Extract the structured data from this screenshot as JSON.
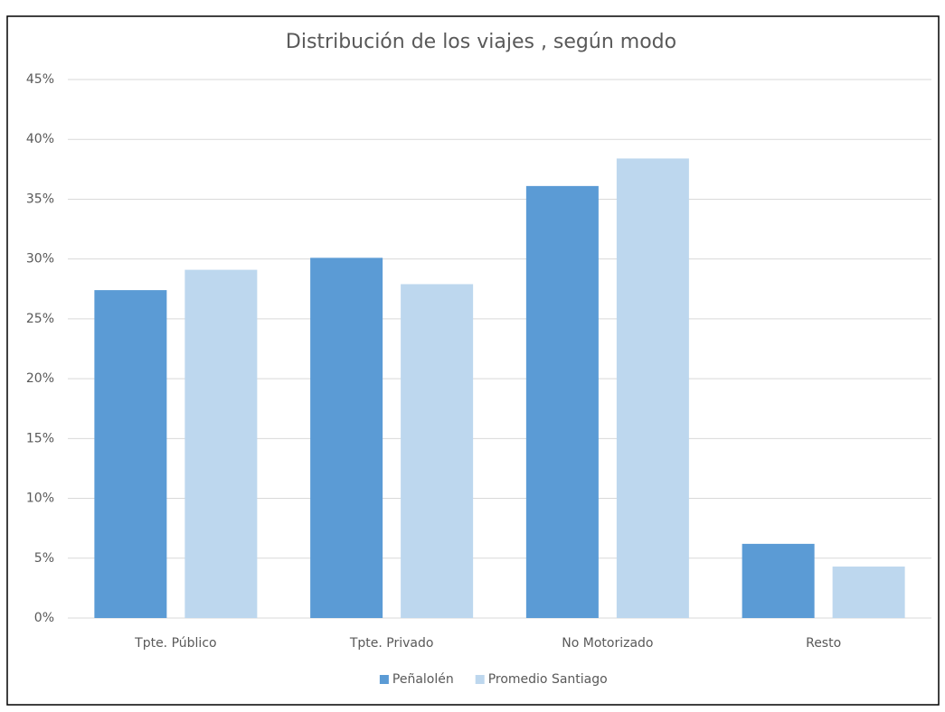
{
  "chart_data": {
    "type": "bar",
    "title": "Distribución de los viajes , según modo",
    "categories": [
      "Tpte. Público",
      "Tpte. Privado",
      "No Motorizado",
      "Resto"
    ],
    "series": [
      {
        "name": "Peñalolén",
        "color": "#5b9bd5",
        "values": [
          27.4,
          30.1,
          36.1,
          6.2
        ]
      },
      {
        "name": "Promedio Santiago",
        "color": "#bdd7ee",
        "values": [
          29.1,
          27.9,
          38.4,
          4.3
        ]
      }
    ],
    "ylim": [
      0,
      45
    ],
    "yticks": [
      {
        "value": 0,
        "label": "0%"
      },
      {
        "value": 5,
        "label": "5%"
      },
      {
        "value": 10,
        "label": "10%"
      },
      {
        "value": 15,
        "label": "15%"
      },
      {
        "value": 20,
        "label": "20%"
      },
      {
        "value": 25,
        "label": "25%"
      },
      {
        "value": 30,
        "label": "30%"
      },
      {
        "value": 35,
        "label": "35%"
      },
      {
        "value": 40,
        "label": "40%"
      },
      {
        "value": 45,
        "label": "45%"
      }
    ],
    "grid": true,
    "legend": "bottom"
  }
}
